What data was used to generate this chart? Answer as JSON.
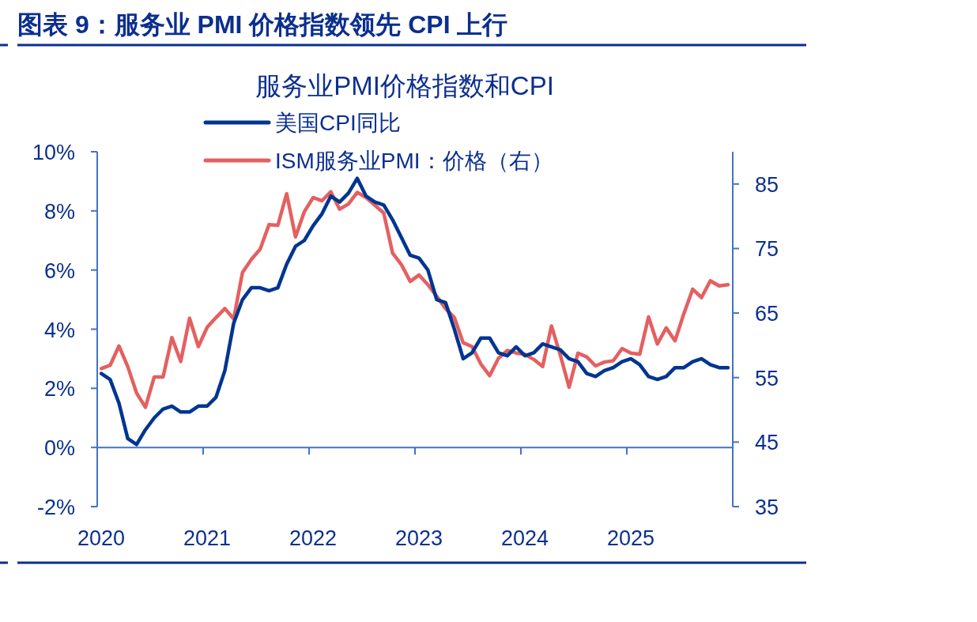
{
  "chart_data": {
    "type": "line",
    "title": "图表 9：服务业 PMI 价格指数领先 CPI 上行",
    "subtitle": "服务业PMI价格指数和CPI",
    "legend": "top",
    "x": [
      "2020-01-15",
      "2020-02-15",
      "2020-03-15",
      "2020-04-15",
      "2020-05-15",
      "2020-06-15",
      "2020-07-15",
      "2020-08-15",
      "2020-09-15",
      "2020-10-15",
      "2020-11-15",
      "2020-12-15",
      "2021-01-15",
      "2021-02-15",
      "2021-03-15",
      "2021-04-15",
      "2021-05-15",
      "2021-06-15",
      "2021-07-15",
      "2021-08-15",
      "2021-09-15",
      "2021-10-15",
      "2021-11-15",
      "2021-12-15",
      "2022-01-15",
      "2022-02-15",
      "2022-03-15",
      "2022-04-15",
      "2022-05-15",
      "2022-06-15",
      "2022-07-15",
      "2022-08-15",
      "2022-09-15",
      "2022-10-15",
      "2022-11-15",
      "2022-12-15",
      "2023-01-15",
      "2023-02-15",
      "2023-03-15",
      "2023-04-15",
      "2023-05-15",
      "2023-06-15",
      "2023-07-15",
      "2023-08-15",
      "2023-09-15",
      "2023-10-15",
      "2023-11-15",
      "2023-12-15",
      "2024-01-15",
      "2024-02-15",
      "2024-03-15",
      "2024-04-15",
      "2024-05-15",
      "2024-06-15",
      "2024-07-15",
      "2024-08-15",
      "2024-09-15",
      "2024-10-15",
      "2024-11-15",
      "2024-12-15",
      "2025-01-15",
      "2025-02-15",
      "2025-03-15",
      "2025-04-15",
      "2025-05-15",
      "2025-06-15",
      "2025-07-15",
      "2025-08-15",
      "2025-09-15",
      "2025-10-15",
      "2025-11-15",
      "2025-12-15"
    ],
    "series": [
      {
        "name": "美国CPI同比",
        "color": "#003591",
        "values": [
          2.5,
          2.3,
          1.5,
          0.3,
          0.1,
          0.6,
          1.0,
          1.3,
          1.4,
          1.2,
          1.2,
          1.4,
          1.4,
          1.7,
          2.6,
          4.2,
          5.0,
          5.4,
          5.4,
          5.3,
          5.4,
          6.2,
          6.8,
          7.0,
          7.5,
          7.9,
          8.5,
          8.3,
          8.6,
          9.1,
          8.5,
          8.3,
          8.2,
          7.7,
          7.1,
          6.5,
          6.4,
          6.0,
          5.0,
          4.9,
          4.0,
          3.0,
          3.2,
          3.7,
          3.7,
          3.2,
          3.1,
          3.4,
          3.1,
          3.2,
          3.5,
          3.4,
          3.3,
          3.0,
          2.9,
          2.5,
          2.4,
          2.6,
          2.7,
          2.9,
          3.0,
          2.8,
          2.4,
          2.3,
          2.4,
          2.7,
          2.7,
          2.9,
          3.0,
          2.8,
          2.7,
          2.7
        ]
      },
      {
        "name": "ISM服务业PMI：价格（右）",
        "color": "#e46060",
        "axis": "y2",
        "values": [
          56.4,
          56.9,
          59.9,
          56.7,
          52.6,
          50.4,
          55.1,
          55.1,
          61.2,
          57.5,
          64.2,
          59.8,
          62.8,
          64.3,
          65.7,
          64.1,
          71.3,
          73.3,
          74.9,
          78.7,
          78.6,
          83.5,
          76.8,
          80.7,
          82.9,
          82.4,
          83.8,
          81.1,
          81.9,
          83.7,
          82.9,
          81.7,
          80.5,
          74.3,
          72.5,
          69.9,
          70.9,
          69.4,
          67.6,
          65.7,
          64.3,
          60.4,
          59.8,
          57.1,
          55.3,
          58.0,
          59.2,
          58.8,
          58.6,
          57.8,
          56.7,
          63.0,
          58.5,
          53.5,
          58.8,
          58.2,
          56.8,
          57.4,
          57.6,
          59.5,
          58.8,
          58.6,
          64.4,
          60.2,
          62.7,
          60.7,
          64.9,
          68.7,
          67.4,
          70.0,
          69.2,
          69.4
        ]
      }
    ],
    "xlim": [
      "2020-01",
      "2026-01"
    ],
    "xticks": [
      {
        "value": "2020-01",
        "label": "2020"
      },
      {
        "value": "2021-01",
        "label": "2021"
      },
      {
        "value": "2022-01",
        "label": "2022"
      },
      {
        "value": "2023-01",
        "label": "2023"
      },
      {
        "value": "2024-01",
        "label": "2024"
      },
      {
        "value": "2025-01",
        "label": "2025"
      }
    ],
    "ylim": [
      -2,
      10
    ],
    "yticks": [
      {
        "value": -2,
        "label": "-2%"
      },
      {
        "value": 0,
        "label": "0%"
      },
      {
        "value": 2,
        "label": "2%"
      },
      {
        "value": 4,
        "label": "4%"
      },
      {
        "value": 6,
        "label": "6%"
      },
      {
        "value": 8,
        "label": "8%"
      },
      {
        "value": 10,
        "label": "10%"
      }
    ],
    "y2lim": [
      35,
      90
    ],
    "y2ticks": [
      35,
      45,
      55,
      65,
      75,
      85
    ],
    "ref_lines": [
      {
        "axis": "y",
        "value": 0,
        "color": "#4472c4"
      }
    ]
  }
}
